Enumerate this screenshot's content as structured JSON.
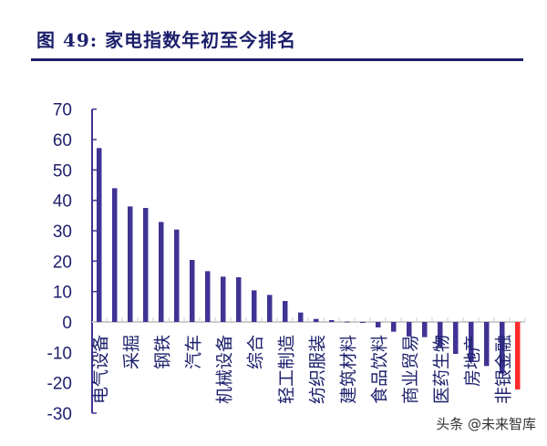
{
  "title": "图  49:  家电指数年初至今排名",
  "watermark": "头条 @未来智库",
  "chart_data": {
    "type": "bar",
    "title": "图  49:  家电指数年初至今排名",
    "ylim": [
      -30,
      70
    ],
    "yticks": [
      70,
      60,
      50,
      40,
      30,
      20,
      10,
      0,
      -10,
      -20,
      -30
    ],
    "grid": false,
    "categories": [
      "电气设备",
      "",
      "采掘",
      "",
      "钢铁",
      "",
      "汽车",
      "",
      "机械设备",
      "",
      "综合",
      "",
      "轻工制造",
      "",
      "纺织服装",
      "",
      "建筑材料",
      "",
      "食品饮料",
      "",
      "商业贸易",
      "",
      "医药生物",
      "",
      "房地产",
      "",
      "非银金融",
      ""
    ],
    "values": [
      57.2,
      44,
      38,
      37.5,
      32.9,
      30.4,
      20.4,
      16.7,
      14.9,
      14.7,
      10.4,
      8.9,
      6.9,
      3.1,
      1.0,
      0.6,
      0.1,
      -0.3,
      -1.8,
      -3.2,
      -4.8,
      -5,
      -8.2,
      -10.5,
      -13,
      -14.5,
      -17,
      -22.2
    ],
    "highlight_index": 27,
    "colors": {
      "bar": "#3f3494",
      "highlight": "#ff2a2a",
      "axis": "#3f3494"
    }
  }
}
